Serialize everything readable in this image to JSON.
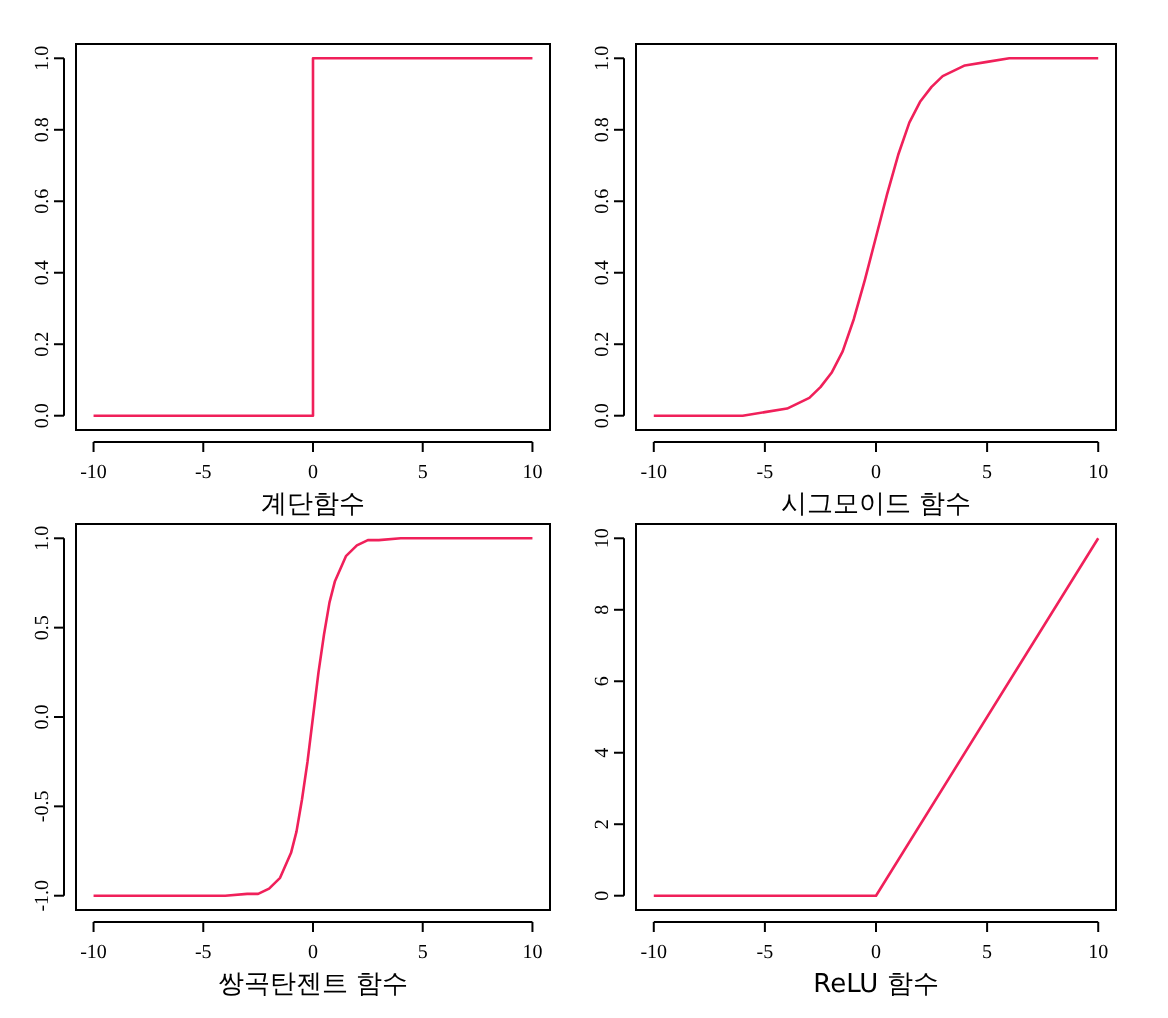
{
  "chart_data": [
    {
      "type": "line",
      "xlabel": "계단함수",
      "x": [
        -10,
        0,
        0,
        10
      ],
      "values": [
        0,
        0,
        1,
        1
      ],
      "color": "#f0205a",
      "xlim": [
        -10.8,
        10.8
      ],
      "ylim": [
        -0.04,
        1.04
      ],
      "xticks": [
        -10,
        -5,
        0,
        5,
        10
      ],
      "yticks": [
        {
          "value": 0,
          "label": "0.0"
        },
        {
          "value": 0.2,
          "label": "0.2"
        },
        {
          "value": 0.4,
          "label": "0.4"
        },
        {
          "value": 0.6,
          "label": "0.6"
        },
        {
          "value": 0.8,
          "label": "0.8"
        },
        {
          "value": 1,
          "label": "1.0"
        }
      ]
    },
    {
      "type": "line",
      "xlabel": "시그모이드 함수",
      "x": [
        -10,
        -6,
        -5,
        -4,
        -3,
        -2.5,
        -2,
        -1.5,
        -1,
        -0.5,
        0,
        0.5,
        1,
        1.5,
        2,
        2.5,
        3,
        4,
        5,
        6,
        10
      ],
      "values": [
        0,
        0,
        0.01,
        0.02,
        0.05,
        0.08,
        0.12,
        0.18,
        0.27,
        0.38,
        0.5,
        0.62,
        0.73,
        0.82,
        0.88,
        0.92,
        0.95,
        0.98,
        0.99,
        1,
        1
      ],
      "color": "#f0205a",
      "xlim": [
        -10.8,
        10.8
      ],
      "ylim": [
        -0.04,
        1.04
      ],
      "xticks": [
        -10,
        -5,
        0,
        5,
        10
      ],
      "yticks": [
        {
          "value": 0,
          "label": "0.0"
        },
        {
          "value": 0.2,
          "label": "0.2"
        },
        {
          "value": 0.4,
          "label": "0.4"
        },
        {
          "value": 0.6,
          "label": "0.6"
        },
        {
          "value": 0.8,
          "label": "0.8"
        },
        {
          "value": 1,
          "label": "1.0"
        }
      ]
    },
    {
      "type": "line",
      "xlabel": "쌍곡탄젠트 함수",
      "x": [
        -10,
        -4,
        -3,
        -2.5,
        -2,
        -1.5,
        -1,
        -0.75,
        -0.5,
        -0.25,
        0,
        0.25,
        0.5,
        0.75,
        1,
        1.5,
        2,
        2.5,
        3,
        4,
        10
      ],
      "values": [
        -1,
        -1,
        -0.99,
        -0.99,
        -0.96,
        -0.9,
        -0.76,
        -0.64,
        -0.46,
        -0.25,
        0,
        0.25,
        0.46,
        0.64,
        0.76,
        0.9,
        0.96,
        0.99,
        0.99,
        1,
        1
      ],
      "color": "#f0205a",
      "xlim": [
        -10.8,
        10.8
      ],
      "ylim": [
        -1.08,
        1.08
      ],
      "xticks": [
        -10,
        -5,
        0,
        5,
        10
      ],
      "yticks": [
        {
          "value": -1,
          "label": "-1.0"
        },
        {
          "value": -0.5,
          "label": "-0.5"
        },
        {
          "value": 0,
          "label": "0.0"
        },
        {
          "value": 0.5,
          "label": "0.5"
        },
        {
          "value": 1,
          "label": "1.0"
        }
      ]
    },
    {
      "type": "line",
      "xlabel": "ReLU 함수",
      "x": [
        -10,
        0,
        10
      ],
      "values": [
        0,
        0,
        10
      ],
      "color": "#f0205a",
      "xlim": [
        -10.8,
        10.8
      ],
      "ylim": [
        -0.4,
        10.4
      ],
      "xticks": [
        -10,
        -5,
        0,
        5,
        10
      ],
      "yticks": [
        0,
        2,
        4,
        6,
        8,
        10
      ]
    }
  ]
}
